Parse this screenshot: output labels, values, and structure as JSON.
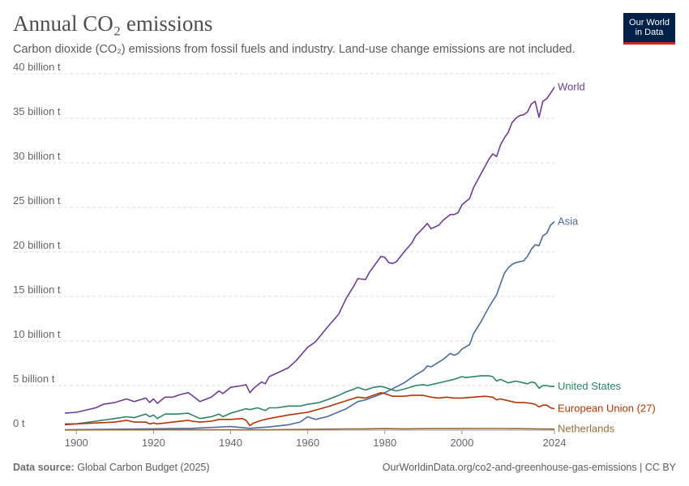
{
  "header": {
    "title": "Annual CO₂ emissions",
    "subtitle": "Carbon dioxide (CO₂) emissions from fossil fuels and industry. Land-use change emissions are not included.",
    "logo_line1": "Our World",
    "logo_line2": "in Data"
  },
  "footer": {
    "source_label": "Data source:",
    "source_value": "Global Carbon Budget (2025)",
    "right_text": "OurWorldinData.org/co2-and-greenhouse-gas-emissions | CC BY"
  },
  "chart_data": {
    "type": "line",
    "title": "Annual CO₂ emissions",
    "xlim": [
      1897,
      2024
    ],
    "ylim": [
      0,
      40
    ],
    "unit": "billion t",
    "grid": true,
    "x_ticks": [
      1900,
      1920,
      1940,
      1960,
      1980,
      2000,
      2024
    ],
    "y_ticks": [
      {
        "value": 0,
        "label": "0 t"
      },
      {
        "value": 5,
        "label": "5 billion t"
      },
      {
        "value": 10,
        "label": "10 billion t"
      },
      {
        "value": 15,
        "label": "15 billion t"
      },
      {
        "value": 20,
        "label": "20 billion t"
      },
      {
        "value": 25,
        "label": "25 billion t"
      },
      {
        "value": 30,
        "label": "30 billion t"
      },
      {
        "value": 35,
        "label": "35 billion t"
      },
      {
        "value": 40,
        "label": "40 billion t"
      }
    ],
    "series": [
      {
        "name": "World",
        "color": "#6d3e91",
        "points": [
          [
            1897,
            1.9
          ],
          [
            1900,
            2.0
          ],
          [
            1905,
            2.5
          ],
          [
            1907,
            2.9
          ],
          [
            1910,
            3.1
          ],
          [
            1913,
            3.5
          ],
          [
            1915,
            3.2
          ],
          [
            1918,
            3.6
          ],
          [
            1919,
            3.1
          ],
          [
            1920,
            3.5
          ],
          [
            1921,
            3.0
          ],
          [
            1923,
            3.7
          ],
          [
            1925,
            3.7
          ],
          [
            1927,
            4.0
          ],
          [
            1929,
            4.2
          ],
          [
            1930,
            3.9
          ],
          [
            1932,
            3.2
          ],
          [
            1935,
            3.7
          ],
          [
            1937,
            4.4
          ],
          [
            1938,
            4.1
          ],
          [
            1940,
            4.8
          ],
          [
            1943,
            5.0
          ],
          [
            1944,
            5.1
          ],
          [
            1945,
            4.2
          ],
          [
            1946,
            4.7
          ],
          [
            1948,
            5.4
          ],
          [
            1949,
            5.2
          ],
          [
            1950,
            6.0
          ],
          [
            1952,
            6.4
          ],
          [
            1955,
            7.0
          ],
          [
            1957,
            7.8
          ],
          [
            1960,
            9.3
          ],
          [
            1962,
            9.9
          ],
          [
            1965,
            11.5
          ],
          [
            1968,
            13.0
          ],
          [
            1970,
            14.8
          ],
          [
            1972,
            16.2
          ],
          [
            1973,
            17.0
          ],
          [
            1975,
            16.9
          ],
          [
            1976,
            17.7
          ],
          [
            1979,
            19.5
          ],
          [
            1980,
            19.4
          ],
          [
            1981,
            18.8
          ],
          [
            1982,
            18.7
          ],
          [
            1983,
            18.9
          ],
          [
            1985,
            20.0
          ],
          [
            1987,
            21.0
          ],
          [
            1988,
            21.8
          ],
          [
            1990,
            22.7
          ],
          [
            1991,
            23.2
          ],
          [
            1992,
            22.6
          ],
          [
            1994,
            23.0
          ],
          [
            1995,
            23.5
          ],
          [
            1997,
            24.2
          ],
          [
            1998,
            24.2
          ],
          [
            1999,
            24.4
          ],
          [
            2000,
            25.3
          ],
          [
            2002,
            26.0
          ],
          [
            2003,
            27.2
          ],
          [
            2005,
            28.8
          ],
          [
            2007,
            30.4
          ],
          [
            2008,
            31.0
          ],
          [
            2009,
            30.7
          ],
          [
            2010,
            32.0
          ],
          [
            2011,
            32.8
          ],
          [
            2012,
            33.4
          ],
          [
            2013,
            34.5
          ],
          [
            2014,
            35.0
          ],
          [
            2015,
            35.3
          ],
          [
            2016,
            35.4
          ],
          [
            2017,
            35.7
          ],
          [
            2018,
            36.6
          ],
          [
            2019,
            36.9
          ],
          [
            2020,
            35.1
          ],
          [
            2021,
            36.9
          ],
          [
            2022,
            37.2
          ],
          [
            2023,
            37.8
          ],
          [
            2024,
            38.5
          ]
        ]
      },
      {
        "name": "Asia",
        "color": "#4c6a9c",
        "points": [
          [
            1897,
            0.05
          ],
          [
            1910,
            0.1
          ],
          [
            1920,
            0.15
          ],
          [
            1930,
            0.2
          ],
          [
            1940,
            0.4
          ],
          [
            1945,
            0.2
          ],
          [
            1950,
            0.35
          ],
          [
            1955,
            0.6
          ],
          [
            1958,
            0.9
          ],
          [
            1960,
            1.5
          ],
          [
            1962,
            1.2
          ],
          [
            1965,
            1.5
          ],
          [
            1970,
            2.4
          ],
          [
            1973,
            3.2
          ],
          [
            1975,
            3.4
          ],
          [
            1980,
            4.2
          ],
          [
            1985,
            5.3
          ],
          [
            1988,
            6.2
          ],
          [
            1990,
            6.7
          ],
          [
            1991,
            7.2
          ],
          [
            1992,
            7.1
          ],
          [
            1995,
            7.9
          ],
          [
            1997,
            8.6
          ],
          [
            1998,
            8.4
          ],
          [
            1999,
            8.6
          ],
          [
            2000,
            9.1
          ],
          [
            2002,
            9.6
          ],
          [
            2003,
            10.8
          ],
          [
            2005,
            12.2
          ],
          [
            2007,
            13.8
          ],
          [
            2008,
            14.5
          ],
          [
            2009,
            15.2
          ],
          [
            2010,
            16.4
          ],
          [
            2011,
            17.6
          ],
          [
            2012,
            18.2
          ],
          [
            2013,
            18.6
          ],
          [
            2014,
            18.8
          ],
          [
            2015,
            18.9
          ],
          [
            2016,
            19.0
          ],
          [
            2017,
            19.5
          ],
          [
            2018,
            20.3
          ],
          [
            2019,
            20.8
          ],
          [
            2020,
            20.7
          ],
          [
            2021,
            21.8
          ],
          [
            2022,
            22.1
          ],
          [
            2023,
            23.0
          ],
          [
            2024,
            23.4
          ]
        ]
      },
      {
        "name": "United States",
        "color": "#2c8465",
        "points": [
          [
            1897,
            0.7
          ],
          [
            1900,
            0.7
          ],
          [
            1905,
            1.0
          ],
          [
            1910,
            1.3
          ],
          [
            1913,
            1.5
          ],
          [
            1915,
            1.4
          ],
          [
            1918,
            1.8
          ],
          [
            1919,
            1.5
          ],
          [
            1920,
            1.7
          ],
          [
            1921,
            1.3
          ],
          [
            1923,
            1.8
          ],
          [
            1926,
            1.8
          ],
          [
            1929,
            1.9
          ],
          [
            1930,
            1.7
          ],
          [
            1932,
            1.3
          ],
          [
            1935,
            1.5
          ],
          [
            1937,
            1.8
          ],
          [
            1938,
            1.5
          ],
          [
            1940,
            1.9
          ],
          [
            1944,
            2.4
          ],
          [
            1945,
            2.3
          ],
          [
            1947,
            2.5
          ],
          [
            1949,
            2.2
          ],
          [
            1950,
            2.5
          ],
          [
            1952,
            2.5
          ],
          [
            1955,
            2.7
          ],
          [
            1958,
            2.7
          ],
          [
            1960,
            2.9
          ],
          [
            1963,
            3.1
          ],
          [
            1965,
            3.4
          ],
          [
            1968,
            3.9
          ],
          [
            1970,
            4.3
          ],
          [
            1972,
            4.6
          ],
          [
            1973,
            4.8
          ],
          [
            1975,
            4.5
          ],
          [
            1977,
            4.8
          ],
          [
            1979,
            4.9
          ],
          [
            1980,
            4.8
          ],
          [
            1982,
            4.5
          ],
          [
            1983,
            4.4
          ],
          [
            1985,
            4.6
          ],
          [
            1988,
            5.0
          ],
          [
            1990,
            5.1
          ],
          [
            1991,
            5.0
          ],
          [
            1995,
            5.4
          ],
          [
            1998,
            5.7
          ],
          [
            2000,
            6.0
          ],
          [
            2001,
            5.9
          ],
          [
            2005,
            6.1
          ],
          [
            2007,
            6.1
          ],
          [
            2008,
            6.0
          ],
          [
            2009,
            5.5
          ],
          [
            2010,
            5.7
          ],
          [
            2012,
            5.3
          ],
          [
            2014,
            5.5
          ],
          [
            2016,
            5.3
          ],
          [
            2017,
            5.2
          ],
          [
            2018,
            5.4
          ],
          [
            2019,
            5.3
          ],
          [
            2020,
            4.7
          ],
          [
            2021,
            5.0
          ],
          [
            2022,
            5.0
          ],
          [
            2023,
            4.9
          ],
          [
            2024,
            4.9
          ]
        ]
      },
      {
        "name": "European Union (27)",
        "color": "#b13507",
        "points": [
          [
            1897,
            0.6
          ],
          [
            1900,
            0.7
          ],
          [
            1905,
            0.8
          ],
          [
            1910,
            0.9
          ],
          [
            1913,
            1.1
          ],
          [
            1915,
            0.9
          ],
          [
            1918,
            0.9
          ],
          [
            1919,
            0.7
          ],
          [
            1920,
            0.8
          ],
          [
            1921,
            0.7
          ],
          [
            1923,
            0.8
          ],
          [
            1925,
            0.9
          ],
          [
            1929,
            1.1
          ],
          [
            1930,
            1.0
          ],
          [
            1932,
            0.9
          ],
          [
            1935,
            1.0
          ],
          [
            1937,
            1.2
          ],
          [
            1940,
            1.2
          ],
          [
            1943,
            1.3
          ],
          [
            1944,
            1.1
          ],
          [
            1945,
            0.5
          ],
          [
            1946,
            0.8
          ],
          [
            1948,
            1.1
          ],
          [
            1950,
            1.3
          ],
          [
            1955,
            1.7
          ],
          [
            1960,
            2.0
          ],
          [
            1965,
            2.6
          ],
          [
            1970,
            3.3
          ],
          [
            1973,
            3.7
          ],
          [
            1975,
            3.6
          ],
          [
            1979,
            4.2
          ],
          [
            1980,
            4.1
          ],
          [
            1982,
            3.8
          ],
          [
            1985,
            3.8
          ],
          [
            1987,
            3.9
          ],
          [
            1990,
            3.9
          ],
          [
            1992,
            3.7
          ],
          [
            1994,
            3.6
          ],
          [
            1996,
            3.7
          ],
          [
            1998,
            3.6
          ],
          [
            2000,
            3.6
          ],
          [
            2003,
            3.7
          ],
          [
            2006,
            3.8
          ],
          [
            2008,
            3.7
          ],
          [
            2009,
            3.4
          ],
          [
            2010,
            3.5
          ],
          [
            2012,
            3.3
          ],
          [
            2014,
            3.1
          ],
          [
            2016,
            3.1
          ],
          [
            2018,
            3.0
          ],
          [
            2019,
            2.9
          ],
          [
            2020,
            2.6
          ],
          [
            2021,
            2.8
          ],
          [
            2022,
            2.8
          ],
          [
            2023,
            2.5
          ],
          [
            2024,
            2.4
          ]
        ]
      },
      {
        "name": "Netherlands",
        "color": "#996d39",
        "points": [
          [
            1897,
            0.02
          ],
          [
            1910,
            0.03
          ],
          [
            1920,
            0.04
          ],
          [
            1930,
            0.05
          ],
          [
            1940,
            0.05
          ],
          [
            1945,
            0.03
          ],
          [
            1950,
            0.05
          ],
          [
            1960,
            0.08
          ],
          [
            1970,
            0.14
          ],
          [
            1975,
            0.15
          ],
          [
            1980,
            0.17
          ],
          [
            1985,
            0.15
          ],
          [
            1990,
            0.16
          ],
          [
            1995,
            0.17
          ],
          [
            2000,
            0.17
          ],
          [
            2005,
            0.18
          ],
          [
            2010,
            0.18
          ],
          [
            2015,
            0.16
          ],
          [
            2020,
            0.14
          ],
          [
            2024,
            0.12
          ]
        ]
      }
    ]
  }
}
